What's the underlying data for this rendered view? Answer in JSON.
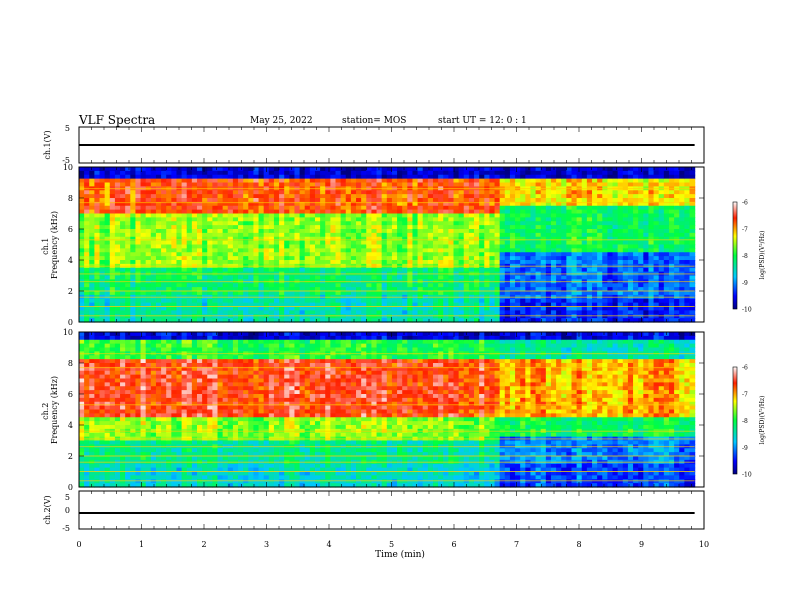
{
  "header": {
    "title": "VLF Spectra",
    "date": "May 25, 2022",
    "station": "station= MOS",
    "start": "start  UT =   12: 0  : 1"
  },
  "chart_data": [
    {
      "type": "line",
      "panel": "waveform-ch1",
      "ylabel": "ch.1(V)",
      "ylim": [
        -5,
        5
      ],
      "yticks": [
        "5",
        "-5"
      ],
      "xlim": [
        0,
        10
      ],
      "series": [
        {
          "x": [
            0,
            9.85
          ],
          "y": [
            0,
            0
          ]
        }
      ]
    },
    {
      "type": "heatmap",
      "panel": "spectrogram-ch1",
      "ylabel": "ch.1\nFrequency (kHz)",
      "ylim": [
        0,
        10
      ],
      "yticks": [
        "0",
        "2",
        "4",
        "6",
        "8",
        "10"
      ],
      "xlim": [
        0,
        10
      ],
      "data_extent_min": 9.85,
      "colorbar": {
        "label": "log(PSD)(V²/Hz)",
        "range": [
          -10,
          -6
        ],
        "ticks": [
          "-6",
          "-7",
          "-8",
          "-9",
          "-10"
        ]
      }
    },
    {
      "type": "heatmap",
      "panel": "spectrogram-ch2",
      "ylabel": "ch.2\nFrequency (kHz)",
      "ylim": [
        0,
        10
      ],
      "yticks": [
        "0",
        "2",
        "4",
        "6",
        "8",
        "10"
      ],
      "xlim": [
        0,
        10
      ],
      "data_extent_min": 9.85,
      "colorbar": {
        "label": "log(PSD)(V²/Hz)",
        "range": [
          -10,
          -6
        ],
        "ticks": [
          "-6",
          "-7",
          "-8",
          "-9",
          "-10"
        ]
      }
    },
    {
      "type": "line",
      "panel": "waveform-ch2",
      "ylabel": "ch.2(V)",
      "ylim": [
        -5,
        5
      ],
      "yticks": [
        "5",
        "0",
        "-5"
      ],
      "xlim": [
        0,
        10
      ],
      "xlabel": "Time (min)",
      "xticks": [
        "0",
        "1",
        "2",
        "3",
        "4",
        "5",
        "6",
        "7",
        "8",
        "9",
        "10"
      ],
      "series": [
        {
          "x": [
            0,
            9.85
          ],
          "y": [
            0,
            0
          ]
        }
      ]
    }
  ]
}
